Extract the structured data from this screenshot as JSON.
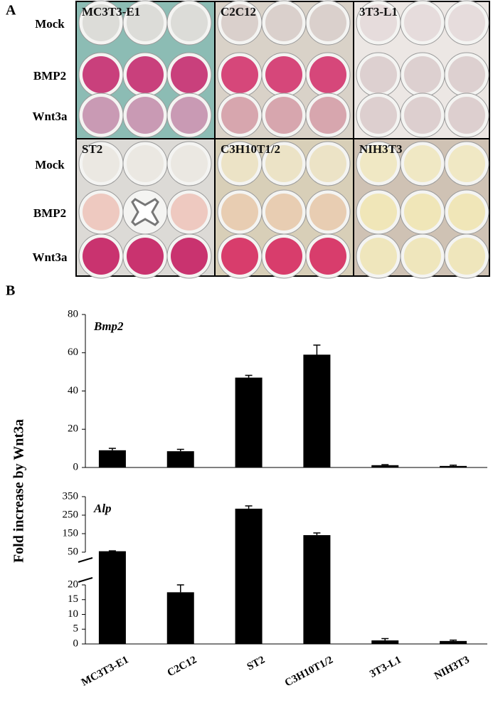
{
  "panel_a": {
    "label": "A",
    "plates": [
      {
        "name": "MC3T3-E1"
      },
      {
        "name": "C2C12"
      },
      {
        "name": "3T3-L1"
      },
      {
        "name": "ST2"
      },
      {
        "name": "C3H10T1/2"
      },
      {
        "name": "NIH3T3"
      }
    ],
    "row_labels": [
      [
        "Mock",
        "BMP2",
        "Wnt3a"
      ],
      [
        "Mock",
        "BMP2",
        "Wnt3a"
      ]
    ]
  },
  "panel_b": {
    "label": "B",
    "y_axis_label": "Fold increase by Wnt3a"
  },
  "chart_data": [
    {
      "type": "bar",
      "title": "Bmp2",
      "values": [
        9,
        8.5,
        47,
        59,
        1.2,
        0.8
      ],
      "errors": [
        1,
        1,
        1.2,
        5,
        0.3,
        0.4
      ],
      "color": "#000000",
      "ylim": [
        0,
        80
      ],
      "yticks": [
        0,
        20,
        40,
        60,
        80
      ]
    },
    {
      "type": "bar",
      "title": "Alp",
      "categories": [
        "MC3T3-E1",
        "C2C12",
        "ST2",
        "C3H10T1/2",
        "3T3-L1",
        "NIH3T3"
      ],
      "values": [
        55,
        17.5,
        285,
        142,
        1.2,
        1
      ],
      "errors": [
        2,
        2.5,
        15,
        12,
        0.6,
        0.3
      ],
      "color": "#000000",
      "ylim": [
        0,
        350
      ],
      "axis_break": [
        20,
        50
      ],
      "yticks": [
        0,
        5,
        10,
        15,
        20,
        50,
        150,
        250,
        350
      ]
    }
  ]
}
